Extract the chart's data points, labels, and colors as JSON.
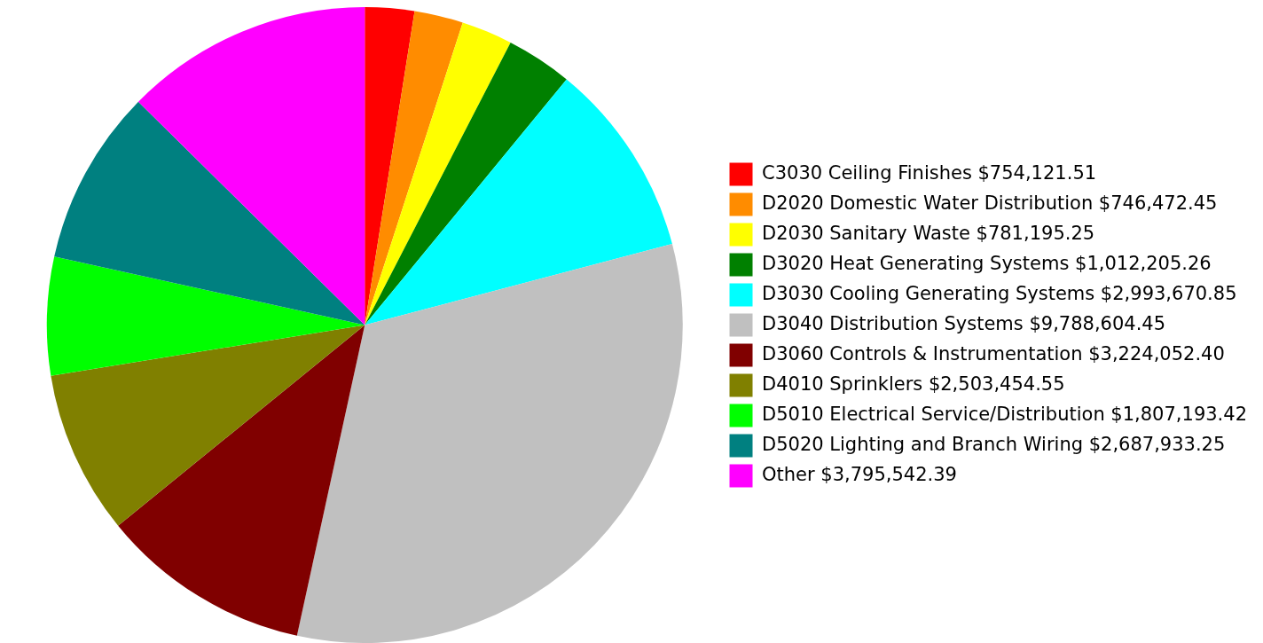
{
  "chart_data": {
    "type": "pie",
    "categories": [
      "C3030 Ceiling Finishes",
      "D2020 Domestic Water Distribution",
      "D2030 Sanitary Waste",
      "D3020 Heat Generating Systems",
      "D3030 Cooling Generating Systems",
      "D3040 Distribution Systems",
      "D3060 Controls & Instrumentation",
      "D4010 Sprinklers",
      "D5010 Electrical Service/Distribution",
      "D5020 Lighting and Branch Wiring",
      "Other"
    ],
    "values": [
      754121.51,
      746472.45,
      781195.25,
      1012205.26,
      2993670.85,
      9788604.45,
      3224052.4,
      2503454.55,
      1807193.42,
      2687933.25,
      3795542.39
    ],
    "value_labels": [
      "$754,121.51",
      "$746,472.45",
      "$781,195.25",
      "$1,012,205.26",
      "$2,993,670.85",
      "$9,788,604.45",
      "$3,224,052.40",
      "$2,503,454.55",
      "$1,807,193.42",
      "$2,687,933.25",
      "$3,795,542.39"
    ],
    "colors": [
      "#ff0000",
      "#ff8c00",
      "#ffff00",
      "#008000",
      "#00ffff",
      "#c0c0c0",
      "#800000",
      "#808000",
      "#00ff00",
      "#008080",
      "#ff00ff"
    ],
    "legend": "right"
  }
}
